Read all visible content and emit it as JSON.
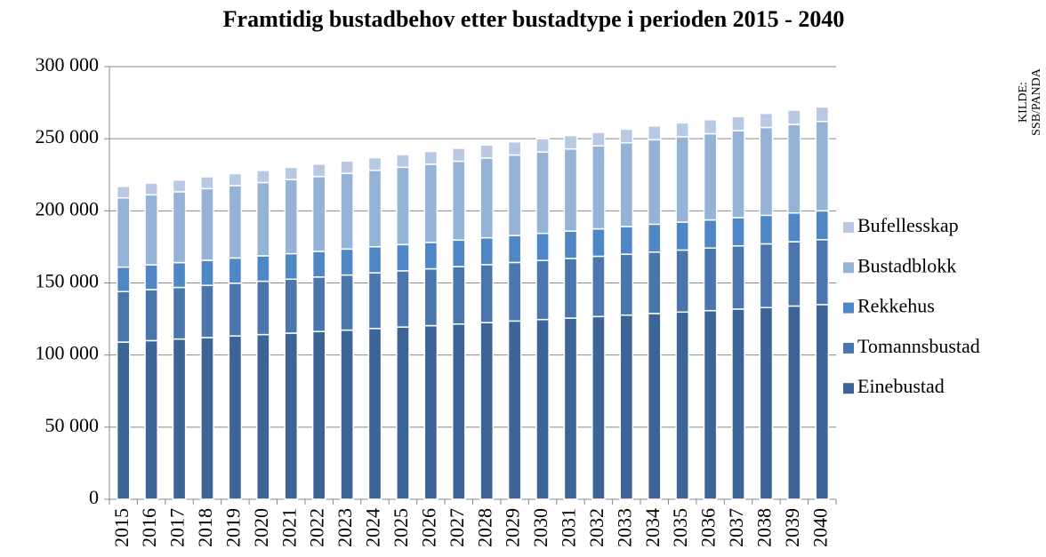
{
  "chart_data": {
    "type": "stacked_bar",
    "title": "Framtidig bustadbehov etter bustadtype i perioden 2015 - 2040",
    "source": [
      "KILDE:",
      "SSB/PANDA"
    ],
    "categories": [
      "2015",
      "2016",
      "2017",
      "2018",
      "2019",
      "2020",
      "2021",
      "2022",
      "2023",
      "2024",
      "2025",
      "2026",
      "2027",
      "2028",
      "2029",
      "2030",
      "2031",
      "2032",
      "2033",
      "2034",
      "2035",
      "2036",
      "2037",
      "2038",
      "2039",
      "2040"
    ],
    "series": [
      {
        "name": "Einebustad",
        "color": "#3d6496",
        "values": [
          109000,
          110000,
          111100,
          112100,
          113200,
          114200,
          115200,
          116300,
          117300,
          118400,
          119400,
          120400,
          121500,
          122500,
          123600,
          124600,
          125600,
          126700,
          127700,
          128800,
          129800,
          130800,
          131900,
          132900,
          134000,
          135000
        ]
      },
      {
        "name": "Tomannsbustad",
        "color": "#4a76ad",
        "values": [
          35000,
          35400,
          35800,
          36200,
          36600,
          37000,
          37400,
          37800,
          38200,
          38600,
          39000,
          39400,
          39800,
          40200,
          40600,
          41000,
          41400,
          41800,
          42200,
          42600,
          43000,
          43400,
          43800,
          44200,
          44600,
          45000
        ]
      },
      {
        "name": "Rekkehus",
        "color": "#4f86c6",
        "values": [
          17000,
          17100,
          17200,
          17400,
          17500,
          17600,
          17700,
          17800,
          18000,
          18100,
          18200,
          18300,
          18400,
          18600,
          18700,
          18800,
          18900,
          19000,
          19200,
          19300,
          19400,
          19500,
          19600,
          19800,
          19900,
          20000
        ]
      },
      {
        "name": "Bustadblokk",
        "color": "#95b3d7",
        "values": [
          48000,
          48600,
          49100,
          49700,
          50200,
          50800,
          51400,
          51900,
          52500,
          53000,
          53600,
          54200,
          54700,
          55300,
          55800,
          56400,
          57000,
          57500,
          58100,
          58600,
          59200,
          59800,
          60300,
          60900,
          61400,
          62000
        ]
      },
      {
        "name": "Bufellesskap",
        "color": "#b9c9e4",
        "values": [
          8000,
          8100,
          8200,
          8200,
          8300,
          8400,
          8500,
          8600,
          8600,
          8700,
          8800,
          8900,
          9000,
          9000,
          9100,
          9200,
          9300,
          9400,
          9400,
          9500,
          9600,
          9700,
          9800,
          9800,
          9900,
          10000
        ]
      }
    ],
    "ylim": [
      0,
      300000
    ],
    "yticks": [
      0,
      {
        "value": 50000,
        "label": "50 000"
      },
      {
        "value": 100000,
        "label": "100 000"
      },
      {
        "value": 150000,
        "label": "150 000"
      },
      {
        "value": 200000,
        "label": "200 000"
      },
      {
        "value": 250000,
        "label": "250 000"
      },
      {
        "value": 300000,
        "label": "300 000"
      }
    ],
    "grid": true,
    "legend": "right"
  }
}
